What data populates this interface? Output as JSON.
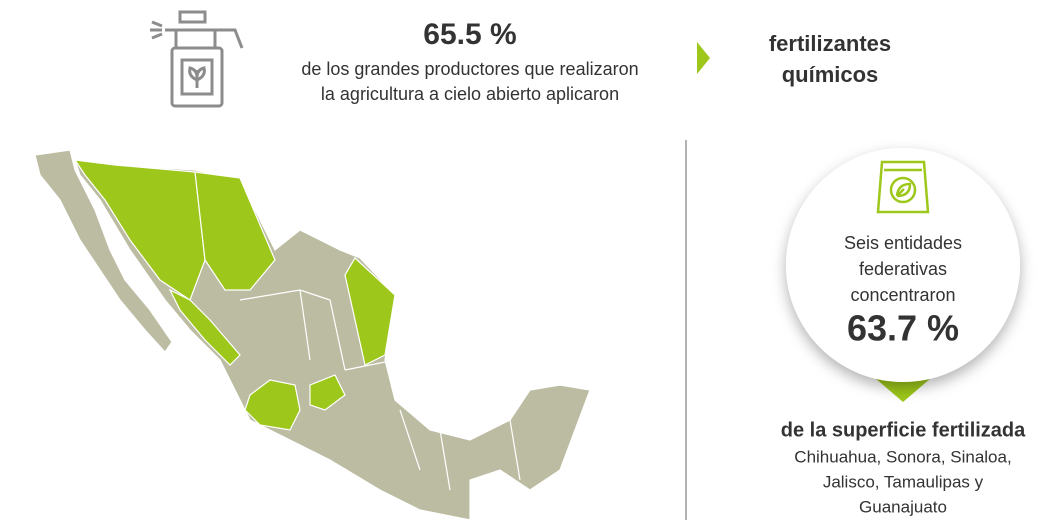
{
  "header": {
    "percent": "65.5 %",
    "description": [
      "de los grandes productores que realizaron",
      "la agricultura a cielo abierto aplicaron"
    ],
    "product": [
      "fertilizantes",
      "químicos"
    ]
  },
  "callout": {
    "lines": [
      "Seis entidades",
      "federativas",
      "concentraron"
    ],
    "percent": "63.7 %",
    "subtitle": "de la superficie fertilizada",
    "states": [
      "Chihuahua, Sonora, Sinaloa,",
      "Jalisco, Tamaulipas y",
      "Guanajuato"
    ]
  }
}
